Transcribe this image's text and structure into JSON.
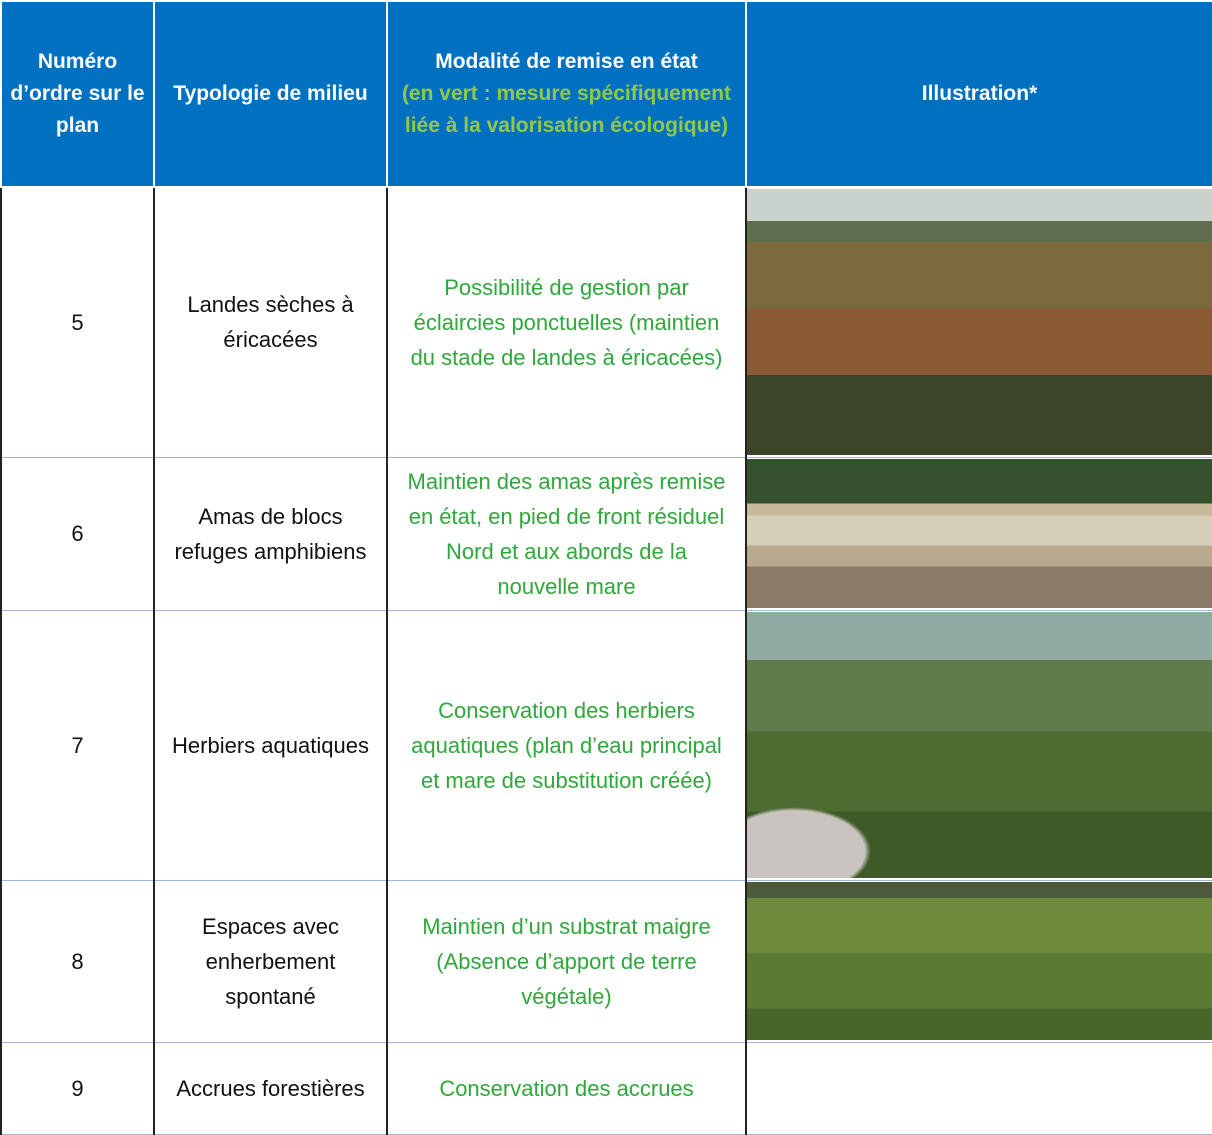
{
  "table": {
    "header": [
      "Numéro d’ordre sur le plan",
      "Typologie de milieu",
      {
        "title": "Modalité de remise en état",
        "note": "(en vert : mesure spécifiquement liée à la valorisation écologique)"
      },
      "Illustration*"
    ],
    "rows": [
      [
        "5",
        "Landes sèches à éricacées",
        "Possibilité de gestion par éclaircies ponctuelles (maintien du stade de landes à éricacées)"
      ],
      [
        "6",
        "Amas de blocs refuges amphibiens",
        "Maintien des amas après remise en état, en pied de front résiduel Nord et aux abords de la nouvelle mare"
      ],
      [
        "7",
        "Herbiers aquatiques",
        "Conservation des herbiers aquatiques (plan d’eau principal et mare de substitution créée)"
      ],
      [
        "8",
        "Espaces avec enherbement spontané",
        "Maintien d’un substrat maigre (Absence d’apport de terre végétale)"
      ],
      [
        "9",
        "Accrues forestières",
        "Conservation des accrues"
      ]
    ]
  }
}
